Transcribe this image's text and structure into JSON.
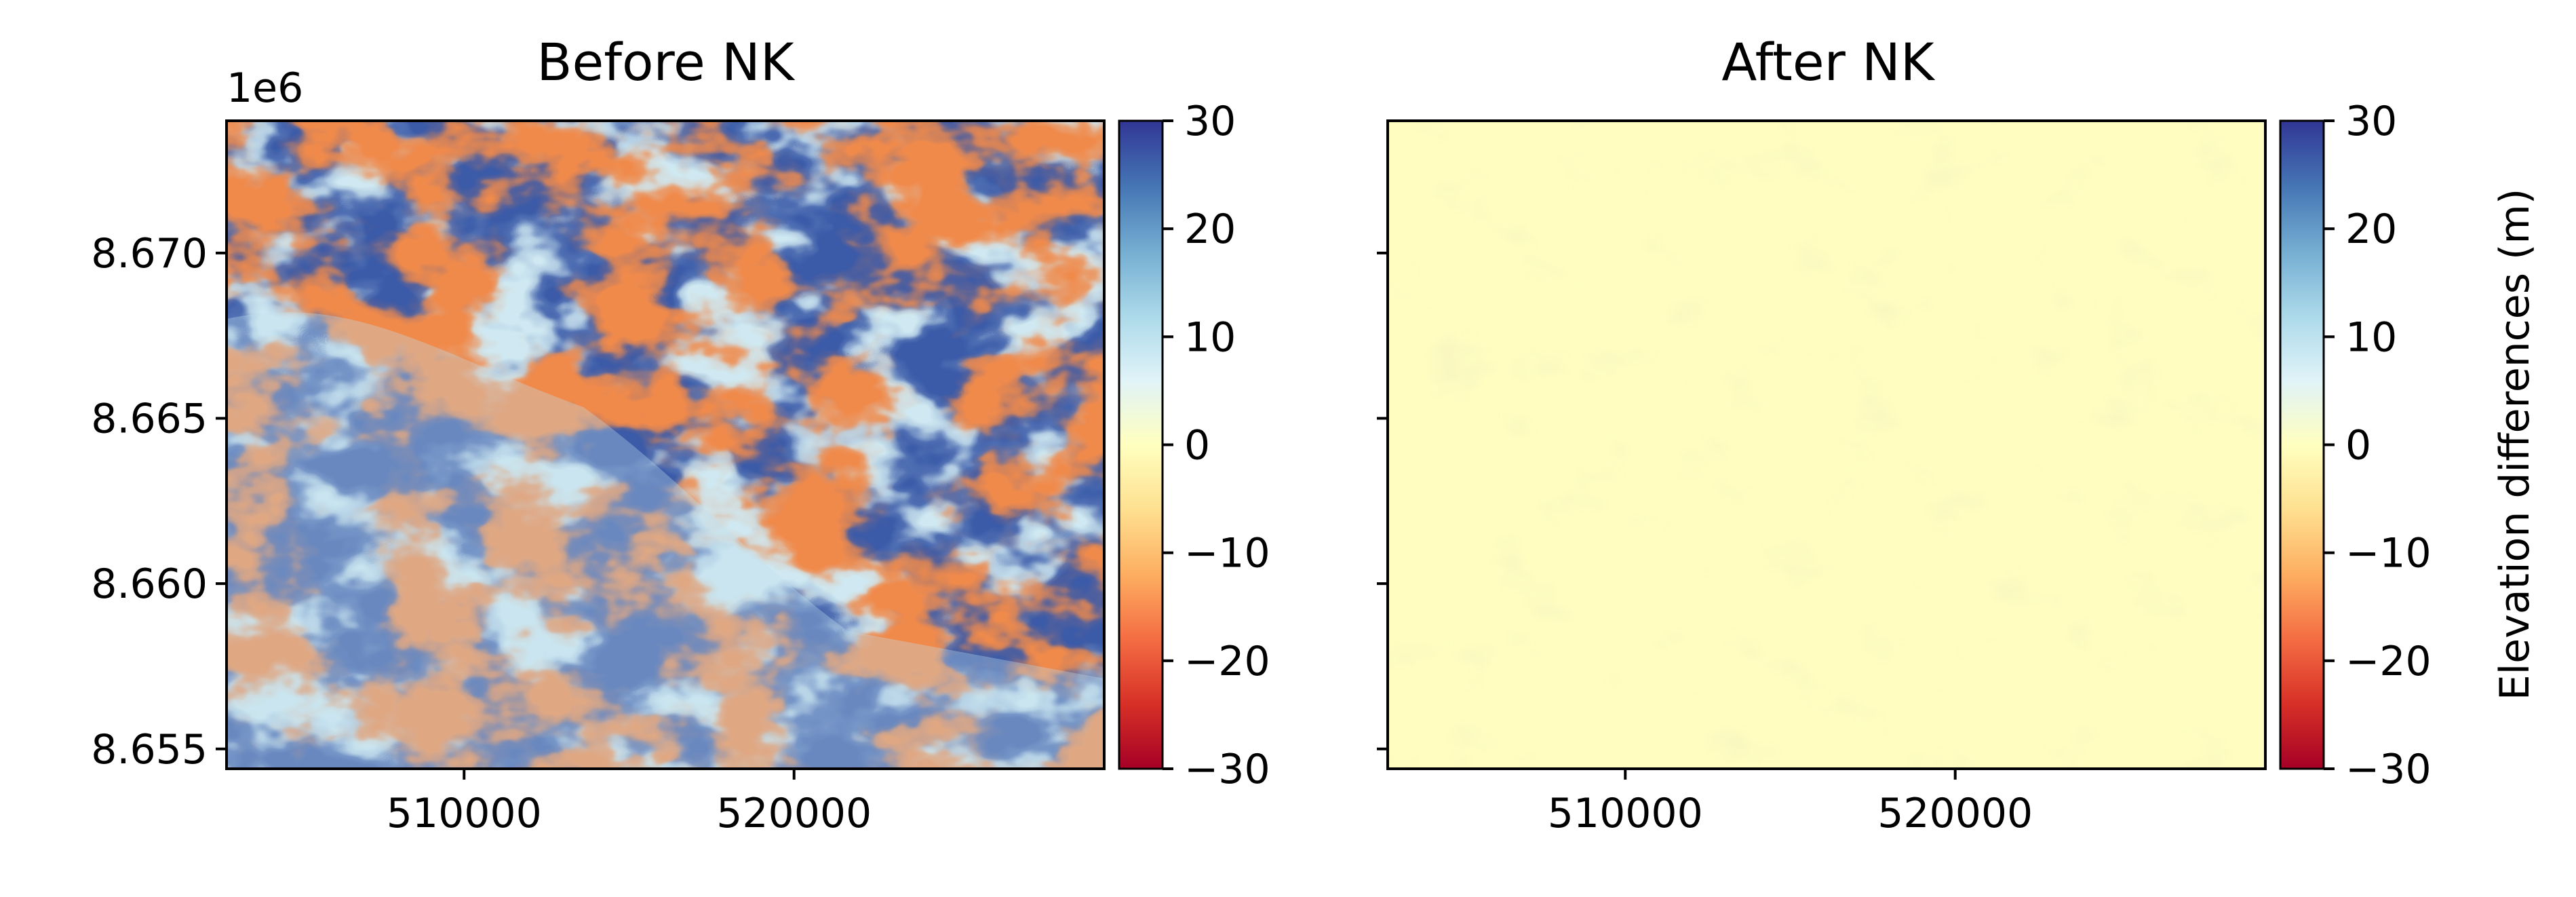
{
  "figure": {
    "colormap": "RdYlBu",
    "colormap_stops": [
      "#a50026",
      "#d73027",
      "#f46d43",
      "#fdae61",
      "#fee090",
      "#ffffbf",
      "#e0f3f8",
      "#abd9e9",
      "#74add1",
      "#4575b4",
      "#313695"
    ]
  },
  "chart_data": [
    {
      "type": "heatmap",
      "title": "Before NK",
      "xlabel": "",
      "ylabel": "",
      "x_ticks": [
        "510000",
        "520000"
      ],
      "x_tick_values": [
        510000,
        520000
      ],
      "xlim": [
        502800,
        529400
      ],
      "y_ticks": [
        "8.655",
        "8.660",
        "8.665",
        "8.670"
      ],
      "y_tick_values": [
        8.655,
        8.66,
        8.665,
        8.67
      ],
      "ylim": [
        8.6544,
        8.674
      ],
      "y_offset_label": "1e6",
      "colorbar": {
        "ticks": [
          "30",
          "20",
          "10",
          "0",
          "−10",
          "−20",
          "−30"
        ],
        "tick_values": [
          30,
          20,
          10,
          0,
          -10,
          -20,
          -30
        ],
        "range": [
          -30,
          30
        ],
        "label": ""
      },
      "description_values": "elevation differences ranging roughly from -30 to 30 m across mountainous terrain"
    },
    {
      "type": "heatmap",
      "title": "After NK",
      "xlabel": "",
      "ylabel": "",
      "x_ticks": [
        "510000",
        "520000"
      ],
      "x_tick_values": [
        510000,
        520000
      ],
      "xlim": [
        502800,
        529400
      ],
      "y_ticks": [
        "",
        "",
        "",
        ""
      ],
      "y_tick_values": [
        8.655,
        8.66,
        8.665,
        8.67
      ],
      "ylim": [
        8.6544,
        8.674
      ],
      "colorbar": {
        "ticks": [
          "30",
          "20",
          "10",
          "0",
          "−10",
          "−20",
          "−30"
        ],
        "tick_values": [
          30,
          20,
          10,
          0,
          -10,
          -20,
          -30
        ],
        "range": [
          -30,
          30
        ],
        "label": "Elevation differences (m)"
      },
      "description_values": "elevation differences near 0 m everywhere"
    }
  ]
}
